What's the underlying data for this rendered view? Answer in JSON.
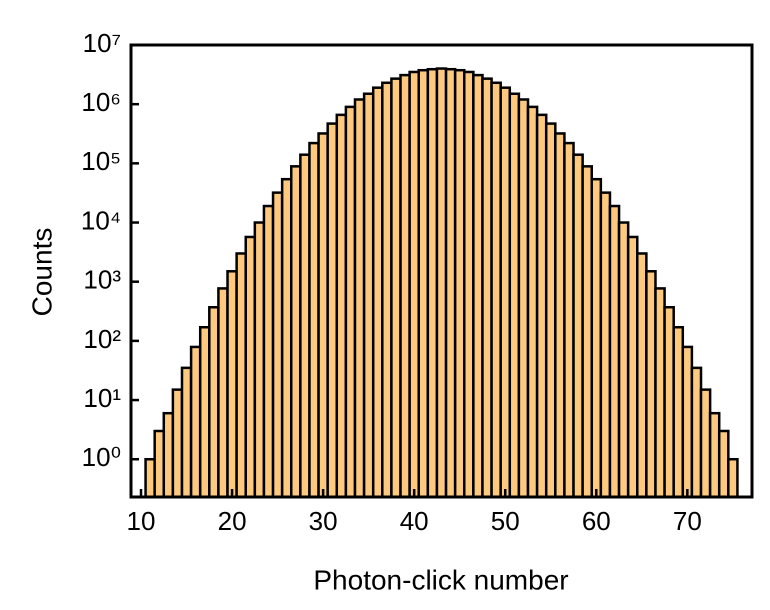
{
  "chart_data": {
    "type": "histogram",
    "x_label": "Photon-click number",
    "y_label": "Counts",
    "bins": [
      10.5,
      11.5,
      12.5,
      13.5,
      14.5,
      15.5,
      16.5,
      17.5,
      18.5,
      19.5,
      20.5,
      21.5,
      22.5,
      23.5,
      24.5,
      25.5,
      26.5,
      27.5,
      28.5,
      29.5,
      30.5,
      31.5,
      32.5,
      33.5,
      34.5,
      35.5,
      36.5,
      37.5,
      38.5,
      39.5,
      40.5,
      41.5,
      42.5,
      43.5,
      44.5,
      45.5,
      46.5,
      47.5,
      48.5,
      49.5,
      50.5,
      51.5,
      52.5,
      53.5,
      54.5,
      55.5,
      56.5,
      57.5,
      58.5,
      59.5,
      60.5,
      61.5,
      62.5,
      63.5,
      64.5,
      65.5,
      66.5,
      67.5,
      68.5,
      69.5,
      70.5,
      71.5,
      72.5,
      73.5,
      74.5,
      75.5
    ],
    "counts": [
      1,
      3,
      6,
      15,
      35,
      79,
      170,
      370,
      770,
      1500,
      3000,
      5700,
      10000,
      19000,
      32000,
      54000,
      89000,
      140000,
      220000,
      320000,
      470000,
      660000,
      900000,
      1200000,
      1500000,
      1900000,
      2300000,
      2700000,
      3100000,
      3500000,
      3750000,
      3900000,
      4000000,
      3900000,
      3750000,
      3500000,
      3100000,
      2700000,
      2300000,
      1900000,
      1500000,
      1200000,
      900000,
      660000,
      470000,
      320000,
      220000,
      140000,
      89000,
      54000,
      32000,
      19000,
      10000,
      5700,
      3000,
      1500,
      770,
      370,
      170,
      79,
      35,
      15,
      6,
      3,
      1
    ],
    "color": "#fcc97f",
    "edge_color": "#000000",
    "xlim": [
      8.9,
      77.1
    ],
    "xticks": [
      10,
      20,
      30,
      40,
      50,
      60,
      70
    ],
    "ylim": [
      0.23,
      10000000
    ],
    "y_scale": "log",
    "yticks": [
      {
        "value": 1,
        "label": "10⁰"
      },
      {
        "value": 10,
        "label": "10¹"
      },
      {
        "value": 100,
        "label": "10²"
      },
      {
        "value": 1000,
        "label": "10³"
      },
      {
        "value": 10000,
        "label": "10⁴"
      },
      {
        "value": 100000,
        "label": "10⁵"
      },
      {
        "value": 1000000,
        "label": "10⁶"
      },
      {
        "value": 10000000,
        "label": "10⁷"
      }
    ],
    "grid": false
  }
}
